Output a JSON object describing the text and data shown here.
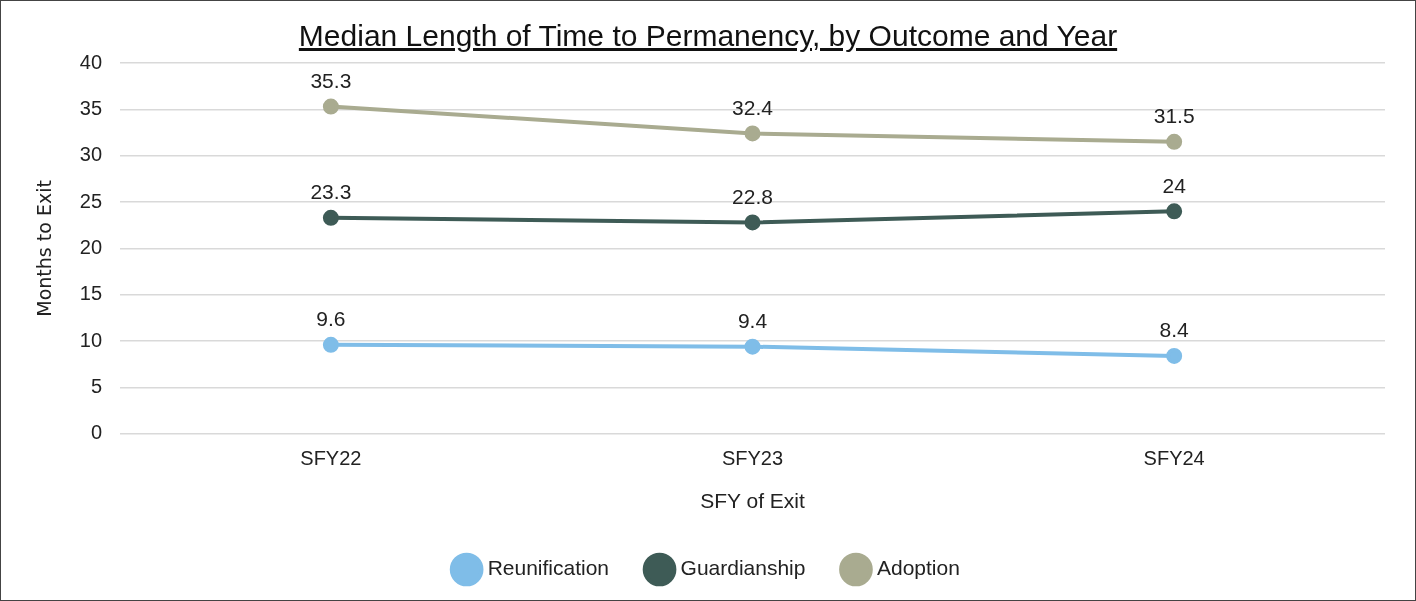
{
  "chart_data": {
    "type": "line",
    "title": "Median Length of Time to Permanency, by Outcome and Year",
    "xlabel": "SFY of Exit",
    "ylabel": "Months to Exit",
    "categories": [
      "SFY22",
      "SFY23",
      "SFY24"
    ],
    "series": [
      {
        "name": "Reunification",
        "color": "#7fbde8",
        "values": [
          9.6,
          9.4,
          8.4
        ]
      },
      {
        "name": "Guardianship",
        "color": "#3e5b56",
        "values": [
          23.3,
          22.8,
          24
        ]
      },
      {
        "name": "Adoption",
        "color": "#a9ab90",
        "values": [
          35.3,
          32.4,
          31.5
        ]
      }
    ],
    "ylim": [
      0,
      40
    ],
    "yticks": [
      0,
      5,
      10,
      15,
      20,
      25,
      30,
      35,
      40
    ],
    "grid": "y",
    "legend": "bottom",
    "marker": "circle",
    "line_style": "solid",
    "data_labels": true
  }
}
